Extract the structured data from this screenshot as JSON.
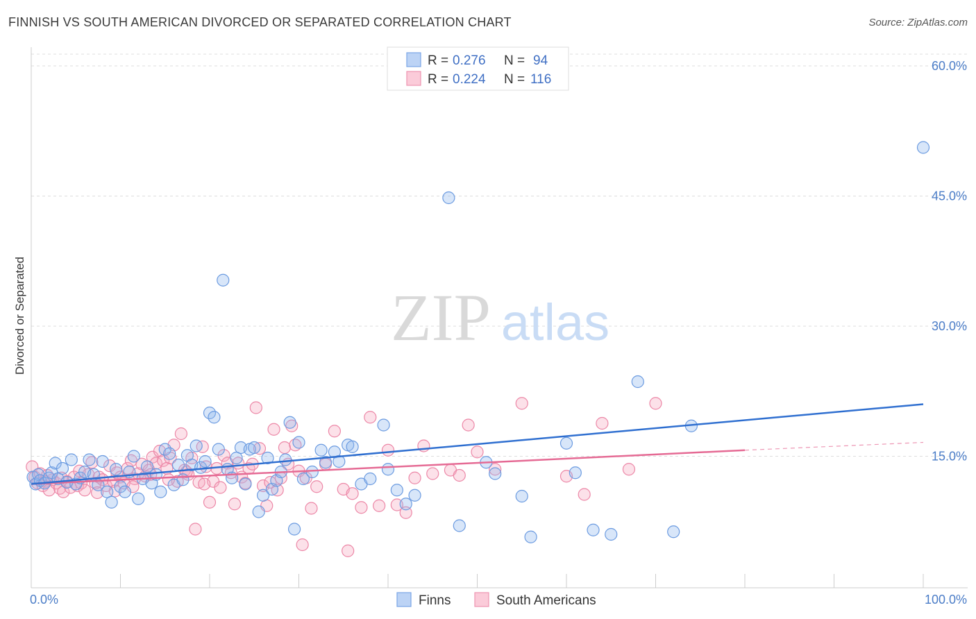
{
  "header": {
    "title": "FINNISH VS SOUTH AMERICAN DIVORCED OR SEPARATED CORRELATION CHART",
    "source": "Source: ZipAtlas.com"
  },
  "watermark": {
    "zip": "ZIP",
    "atlas": "atlas"
  },
  "legend": {
    "r_label": "R =",
    "n_label": "N =",
    "rows": [
      {
        "name": "Finns",
        "r": "0.276",
        "n": "94",
        "color": "#8fb6ee"
      },
      {
        "name": "South Americans",
        "r": "0.224",
        "n": "116",
        "color": "#f5a8c0"
      }
    ]
  },
  "chart_data": {
    "type": "scatter",
    "title": "FINNISH VS SOUTH AMERICAN DIVORCED OR SEPARATED CORRELATION CHART",
    "xlabel": "",
    "ylabel": "Divorced or Separated",
    "xlim": [
      0,
      100
    ],
    "ylim": [
      0,
      62
    ],
    "x_tick_labels": [
      "0.0%",
      "100.0%"
    ],
    "y_ticks": [
      15,
      30,
      45,
      60
    ],
    "y_tick_labels": [
      "15.0%",
      "30.0%",
      "45.0%",
      "60.0%"
    ],
    "grid": true,
    "legend_position": "top-center",
    "series": [
      {
        "name": "Finns",
        "color": "#8fb6ee",
        "stroke": "#6a9ae0",
        "trend": {
          "x": [
            0,
            100
          ],
          "y": [
            11.8,
            21.0
          ],
          "color": "#2f6fd0"
        },
        "points": [
          [
            0.2,
            12.6
          ],
          [
            0.5,
            11.8
          ],
          [
            0.8,
            12.9
          ],
          [
            1.0,
            12.2
          ],
          [
            1.5,
            11.9
          ],
          [
            2.0,
            12.5
          ],
          [
            2.3,
            13.1
          ],
          [
            2.7,
            14.2
          ],
          [
            3.0,
            12.4
          ],
          [
            3.5,
            13.6
          ],
          [
            4.0,
            12.0
          ],
          [
            4.5,
            14.6
          ],
          [
            5.0,
            11.8
          ],
          [
            5.5,
            12.5
          ],
          [
            6.0,
            13.2
          ],
          [
            6.5,
            14.6
          ],
          [
            7.0,
            12.9
          ],
          [
            7.5,
            11.7
          ],
          [
            8.0,
            14.4
          ],
          [
            8.5,
            10.9
          ],
          [
            9.0,
            9.7
          ],
          [
            9.5,
            13.5
          ],
          [
            10.0,
            11.5
          ],
          [
            10.5,
            10.9
          ],
          [
            11.0,
            13.2
          ],
          [
            11.5,
            15.0
          ],
          [
            12.0,
            10.1
          ],
          [
            12.5,
            12.4
          ],
          [
            13.0,
            13.8
          ],
          [
            13.5,
            11.9
          ],
          [
            14.0,
            12.9
          ],
          [
            14.5,
            10.9
          ],
          [
            15.0,
            15.8
          ],
          [
            15.5,
            15.3
          ],
          [
            16.0,
            11.7
          ],
          [
            16.5,
            14.0
          ],
          [
            17.0,
            12.3
          ],
          [
            17.5,
            15.1
          ],
          [
            18.0,
            14.0
          ],
          [
            18.5,
            16.2
          ],
          [
            19.0,
            13.7
          ],
          [
            19.5,
            14.4
          ],
          [
            20.0,
            20.0
          ],
          [
            20.5,
            19.5
          ],
          [
            21.0,
            15.8
          ],
          [
            21.5,
            35.3
          ],
          [
            22.0,
            13.5
          ],
          [
            22.5,
            12.5
          ],
          [
            23.0,
            14.8
          ],
          [
            23.5,
            16.0
          ],
          [
            24.0,
            11.8
          ],
          [
            24.5,
            15.8
          ],
          [
            25.0,
            16.0
          ],
          [
            25.5,
            8.6
          ],
          [
            26.0,
            10.5
          ],
          [
            26.5,
            14.8
          ],
          [
            27.0,
            11.2
          ],
          [
            27.5,
            12.2
          ],
          [
            28.0,
            13.2
          ],
          [
            28.5,
            14.6
          ],
          [
            29.0,
            18.9
          ],
          [
            29.5,
            6.6
          ],
          [
            30.0,
            16.6
          ],
          [
            30.5,
            12.4
          ],
          [
            31.5,
            13.2
          ],
          [
            32.5,
            15.7
          ],
          [
            33.0,
            14.3
          ],
          [
            34.0,
            15.5
          ],
          [
            34.5,
            14.4
          ],
          [
            35.5,
            16.3
          ],
          [
            36.0,
            16.1
          ],
          [
            37.0,
            11.8
          ],
          [
            38.0,
            12.4
          ],
          [
            39.5,
            18.6
          ],
          [
            40.0,
            13.5
          ],
          [
            41.0,
            11.1
          ],
          [
            42.0,
            9.5
          ],
          [
            43.0,
            10.5
          ],
          [
            46.8,
            44.8
          ],
          [
            48.0,
            7.0
          ],
          [
            51.0,
            14.3
          ],
          [
            52.0,
            13.0
          ],
          [
            55.0,
            10.4
          ],
          [
            56.0,
            5.7
          ],
          [
            60.0,
            16.5
          ],
          [
            61.0,
            13.1
          ],
          [
            63.0,
            6.5
          ],
          [
            65.0,
            6.0
          ],
          [
            68.0,
            23.6
          ],
          [
            72.0,
            6.3
          ],
          [
            74.0,
            18.5
          ],
          [
            100.0,
            50.6
          ]
        ]
      },
      {
        "name": "South Americans",
        "color": "#f5a8c0",
        "stroke": "#ec86a6",
        "trend": {
          "x": [
            0,
            80
          ],
          "y": [
            11.8,
            15.7
          ],
          "color": "#e56a94"
        },
        "trend_dashed": {
          "x": [
            80,
            100
          ],
          "y": [
            15.7,
            16.6
          ]
        },
        "points": [
          [
            0.1,
            13.8
          ],
          [
            0.4,
            12.6
          ],
          [
            0.7,
            11.9
          ],
          [
            1.0,
            13.0
          ],
          [
            1.3,
            11.6
          ],
          [
            1.6,
            12.1
          ],
          [
            2.0,
            11.1
          ],
          [
            2.4,
            12.3
          ],
          [
            2.8,
            11.9
          ],
          [
            3.2,
            11.3
          ],
          [
            3.6,
            10.9
          ],
          [
            4.0,
            12.1
          ],
          [
            4.4,
            11.4
          ],
          [
            4.8,
            12.6
          ],
          [
            5.2,
            11.6
          ],
          [
            5.6,
            11.9
          ],
          [
            6.0,
            11.1
          ],
          [
            6.4,
            12.9
          ],
          [
            6.8,
            14.3
          ],
          [
            7.2,
            11.9
          ],
          [
            7.6,
            12.6
          ],
          [
            8.0,
            12.3
          ],
          [
            8.4,
            11.6
          ],
          [
            8.8,
            13.9
          ],
          [
            9.2,
            12.1
          ],
          [
            9.6,
            13.1
          ],
          [
            10.0,
            12.6
          ],
          [
            10.4,
            11.9
          ],
          [
            10.8,
            13.6
          ],
          [
            11.2,
            14.5
          ],
          [
            11.6,
            12.4
          ],
          [
            12.0,
            13.0
          ],
          [
            12.4,
            14.1
          ],
          [
            12.8,
            12.7
          ],
          [
            13.2,
            13.4
          ],
          [
            13.6,
            14.9
          ],
          [
            14.0,
            14.2
          ],
          [
            14.4,
            15.6
          ],
          [
            14.8,
            14.5
          ],
          [
            15.2,
            13.6
          ],
          [
            15.6,
            14.8
          ],
          [
            16.0,
            16.3
          ],
          [
            16.4,
            12.1
          ],
          [
            16.8,
            17.6
          ],
          [
            17.2,
            13.4
          ],
          [
            17.6,
            12.9
          ],
          [
            18.0,
            14.8
          ],
          [
            18.4,
            6.6
          ],
          [
            18.8,
            12.0
          ],
          [
            19.2,
            16.1
          ],
          [
            19.6,
            13.8
          ],
          [
            20.0,
            9.7
          ],
          [
            20.4,
            12.1
          ],
          [
            20.8,
            13.6
          ],
          [
            21.2,
            11.4
          ],
          [
            21.6,
            15.1
          ],
          [
            22.0,
            14.2
          ],
          [
            22.4,
            13.1
          ],
          [
            22.8,
            9.5
          ],
          [
            23.2,
            14.2
          ],
          [
            23.6,
            12.6
          ],
          [
            24.0,
            11.9
          ],
          [
            24.4,
            13.6
          ],
          [
            24.8,
            14.1
          ],
          [
            25.2,
            20.6
          ],
          [
            25.6,
            15.9
          ],
          [
            26.0,
            11.6
          ],
          [
            26.4,
            9.3
          ],
          [
            26.8,
            12.0
          ],
          [
            27.2,
            18.1
          ],
          [
            27.6,
            11.1
          ],
          [
            28.0,
            12.5
          ],
          [
            28.4,
            16.0
          ],
          [
            28.8,
            14.1
          ],
          [
            29.2,
            18.5
          ],
          [
            29.6,
            16.3
          ],
          [
            30.0,
            13.3
          ],
          [
            30.4,
            4.8
          ],
          [
            30.8,
            12.5
          ],
          [
            31.4,
            9.0
          ],
          [
            32.0,
            11.5
          ],
          [
            33.0,
            14.1
          ],
          [
            34.0,
            17.9
          ],
          [
            35.0,
            11.2
          ],
          [
            35.5,
            4.1
          ],
          [
            36.0,
            10.7
          ],
          [
            37.0,
            9.1
          ],
          [
            38.0,
            19.5
          ],
          [
            39.0,
            9.3
          ],
          [
            40.0,
            15.7
          ],
          [
            41.0,
            9.4
          ],
          [
            42.0,
            8.5
          ],
          [
            43.0,
            12.5
          ],
          [
            44.0,
            16.2
          ],
          [
            45.0,
            13.0
          ],
          [
            47.0,
            13.4
          ],
          [
            48.0,
            12.8
          ],
          [
            49.0,
            18.6
          ],
          [
            50.0,
            15.5
          ],
          [
            52.0,
            13.5
          ],
          [
            55.0,
            21.1
          ],
          [
            60.0,
            12.7
          ],
          [
            62.0,
            10.6
          ],
          [
            64.0,
            18.8
          ],
          [
            67.0,
            13.5
          ],
          [
            70.0,
            21.1
          ],
          [
            1.8,
            12.8
          ],
          [
            3.4,
            12.5
          ],
          [
            5.4,
            13.3
          ],
          [
            7.4,
            10.8
          ],
          [
            9.4,
            11.0
          ],
          [
            11.4,
            11.5
          ],
          [
            13.4,
            12.9
          ],
          [
            15.4,
            12.3
          ],
          [
            17.4,
            13.2
          ],
          [
            19.4,
            11.8
          ]
        ]
      }
    ]
  }
}
